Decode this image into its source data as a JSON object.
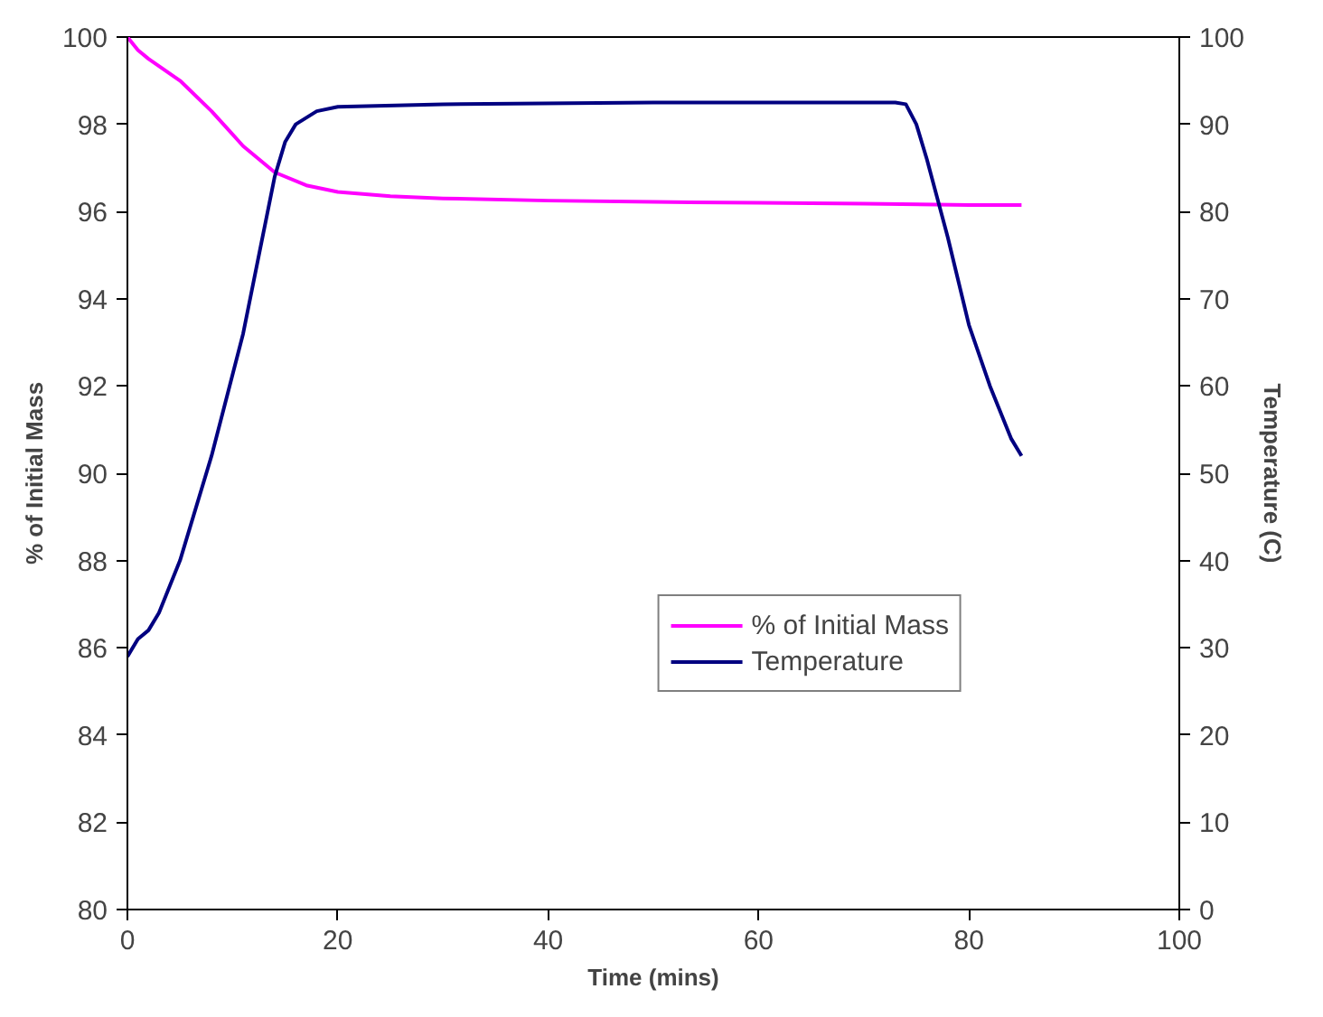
{
  "chart_data": {
    "type": "line",
    "xlabel": "Time (mins)",
    "ylabel": "% of Initial Mass",
    "y2label": "Temperature (C)",
    "xlim": [
      0,
      100
    ],
    "xticks": [
      0,
      20,
      40,
      60,
      80,
      100
    ],
    "ylim": [
      80,
      100
    ],
    "yticks": [
      80,
      82,
      84,
      86,
      88,
      90,
      92,
      94,
      96,
      98,
      100
    ],
    "y2lim": [
      0,
      100
    ],
    "y2ticks": [
      0,
      10,
      20,
      30,
      40,
      50,
      60,
      70,
      80,
      90,
      100
    ],
    "legend": "bottom right",
    "grid": false,
    "marker": "none",
    "line_style": "solid",
    "series": [
      {
        "name": "% of Initial Mass",
        "color": "#ff00ff",
        "x": [
          0,
          1,
          2,
          5,
          8,
          11,
          14,
          17,
          20,
          25,
          30,
          40,
          50,
          60,
          70,
          80,
          85
        ],
        "values": [
          100,
          99.7,
          99.5,
          99,
          98.3,
          97.5,
          96.9,
          96.6,
          96.45,
          96.35,
          96.3,
          96.25,
          96.22,
          96.2,
          96.18,
          96.15,
          96.15
        ]
      },
      {
        "name": "Temperature",
        "color": "#000080",
        "axis": "y2",
        "x": [
          0,
          1,
          2,
          3,
          5,
          8,
          11,
          13,
          14,
          15,
          16,
          18,
          20,
          30,
          50,
          73,
          74,
          75,
          76,
          78,
          80,
          82,
          84,
          85
        ],
        "values": [
          29,
          31,
          32,
          34,
          40,
          52,
          66,
          78,
          84,
          88,
          90,
          91.5,
          92,
          92.3,
          92.5,
          92.5,
          92.3,
          90,
          86,
          77,
          67,
          60,
          54,
          52
        ]
      }
    ]
  }
}
